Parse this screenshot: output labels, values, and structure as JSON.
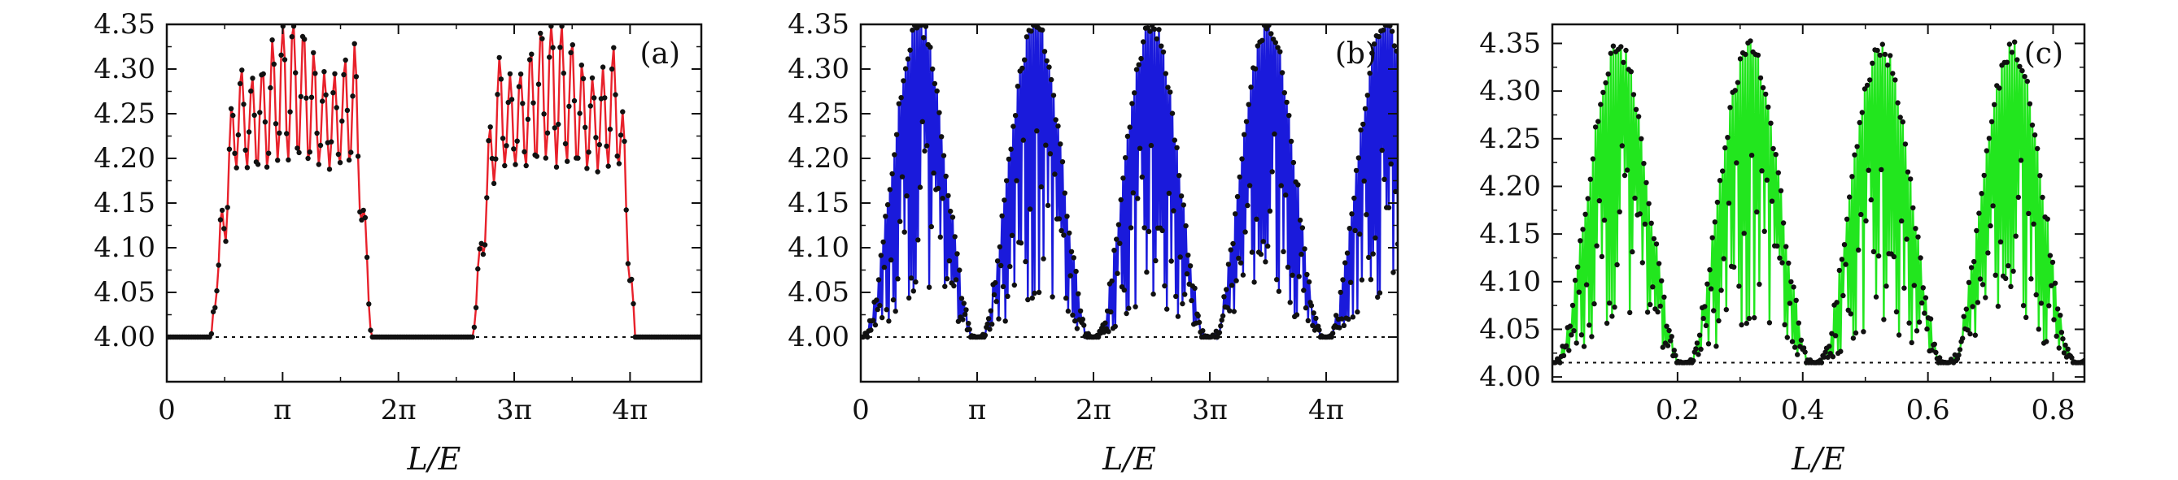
{
  "chart_data": [
    {
      "type": "line",
      "panel_label": "(a)",
      "xlabel": "L/E",
      "ylabel": "",
      "xlim": [
        0,
        14.5
      ],
      "ylim": [
        3.95,
        4.35
      ],
      "x_ticks": [
        {
          "value": 0,
          "label": "0"
        },
        {
          "value": 3.1416,
          "label": "π"
        },
        {
          "value": 6.2832,
          "label": "2π"
        },
        {
          "value": 9.4248,
          "label": "3π"
        },
        {
          "value": 12.5664,
          "label": "4π"
        }
      ],
      "y_ticks": [
        4.0,
        4.05,
        4.1,
        4.15,
        4.2,
        4.25,
        4.3,
        4.35
      ],
      "y_tick_labels": [
        "4.00",
        "4.05",
        "4.10",
        "4.15",
        "4.20",
        "4.25",
        "4.30",
        "4.35"
      ],
      "baseline": 4.0,
      "series": [
        {
          "color": "#e8212b",
          "marker_color": "#111111",
          "n_points": 300,
          "lobes": [
            {
              "x_start": 1.2,
              "x_end": 5.55,
              "rise_end": 1.9,
              "fall_start": 5.1,
              "plateau": 4.26,
              "oscillation_amplitude": 0.085,
              "oscillation_period": 0.28,
              "edge_dip": 4.0
            },
            {
              "x_start": 8.3,
              "x_end": 12.7,
              "rise_end": 8.95,
              "fall_start": 12.25,
              "plateau": 4.26,
              "oscillation_amplitude": 0.085,
              "oscillation_period": 0.28,
              "edge_dip": 4.0
            }
          ]
        }
      ]
    },
    {
      "type": "line",
      "panel_label": "(b)",
      "xlabel": "L/E",
      "ylabel": "",
      "xlim": [
        0,
        14.5
      ],
      "ylim": [
        3.95,
        4.35
      ],
      "x_ticks": [
        {
          "value": 0,
          "label": "0"
        },
        {
          "value": 3.1416,
          "label": "π"
        },
        {
          "value": 6.2832,
          "label": "2π"
        },
        {
          "value": 9.4248,
          "label": "3π"
        },
        {
          "value": 12.5664,
          "label": "4π"
        }
      ],
      "y_ticks": [
        4.0,
        4.05,
        4.1,
        4.15,
        4.2,
        4.25,
        4.3,
        4.35
      ],
      "y_tick_labels": [
        "4.00",
        "4.05",
        "4.10",
        "4.15",
        "4.20",
        "4.25",
        "4.30",
        "4.35"
      ],
      "baseline": 4.0,
      "series": [
        {
          "color": "#1a1adb",
          "marker_color": "#111111",
          "n_points": 480,
          "envelope": {
            "period": 6.2832,
            "phase": 0.0,
            "floor": 4.0,
            "peak": 4.36,
            "shape": "sin2"
          },
          "spike_period": 0.06
        }
      ]
    },
    {
      "type": "line",
      "panel_label": "(c)",
      "xlabel": "L/E",
      "ylabel": "",
      "xlim": [
        0.0,
        0.85
      ],
      "ylim": [
        3.995,
        4.37
      ],
      "x_ticks": [
        {
          "value": 0.2,
          "label": "0.2"
        },
        {
          "value": 0.4,
          "label": "0.4"
        },
        {
          "value": 0.6,
          "label": "0.6"
        },
        {
          "value": 0.8,
          "label": "0.8"
        }
      ],
      "y_ticks": [
        4.0,
        4.05,
        4.1,
        4.15,
        4.2,
        4.25,
        4.3,
        4.35
      ],
      "y_tick_labels": [
        "4.00",
        "4.05",
        "4.10",
        "4.15",
        "4.20",
        "4.25",
        "4.30",
        "4.35"
      ],
      "baseline": 4.015,
      "series": [
        {
          "color": "#22e61e",
          "marker_color": "#111111",
          "n_points": 420,
          "envelope": {
            "period": 0.42,
            "phase": 0.0,
            "floor": 4.015,
            "peak": 4.355,
            "shape": "sin2"
          },
          "spike_period": 0.012
        }
      ]
    }
  ]
}
